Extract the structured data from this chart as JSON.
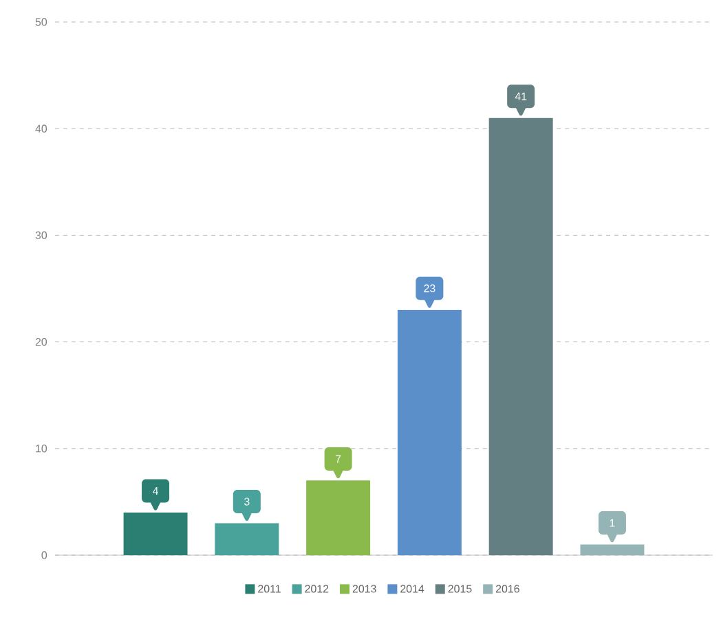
{
  "chart_data": {
    "type": "bar",
    "categories": [
      null,
      null,
      null,
      null,
      null,
      null
    ],
    "series": [
      {
        "name": "2011",
        "color": "#2a7f72",
        "values": [
          4,
          null,
          null,
          null,
          null,
          null
        ]
      },
      {
        "name": "2012",
        "color": "#4aa39a",
        "values": [
          null,
          3,
          null,
          null,
          null,
          null
        ]
      },
      {
        "name": "2013",
        "color": "#8aba4b",
        "values": [
          null,
          null,
          7,
          null,
          null,
          null
        ]
      },
      {
        "name": "2014",
        "color": "#5b8fc9",
        "values": [
          null,
          null,
          null,
          23,
          null,
          null
        ]
      },
      {
        "name": "2015",
        "color": "#647f81",
        "values": [
          null,
          null,
          null,
          null,
          41,
          null
        ]
      },
      {
        "name": "2016",
        "color": "#95b4b6",
        "values": [
          null,
          null,
          null,
          null,
          null,
          1
        ]
      }
    ],
    "ylim": [
      0,
      50
    ],
    "yticks": [
      0,
      10,
      20,
      30,
      40,
      50
    ],
    "grid": "y",
    "legend": "bottom",
    "data_labels": true
  }
}
